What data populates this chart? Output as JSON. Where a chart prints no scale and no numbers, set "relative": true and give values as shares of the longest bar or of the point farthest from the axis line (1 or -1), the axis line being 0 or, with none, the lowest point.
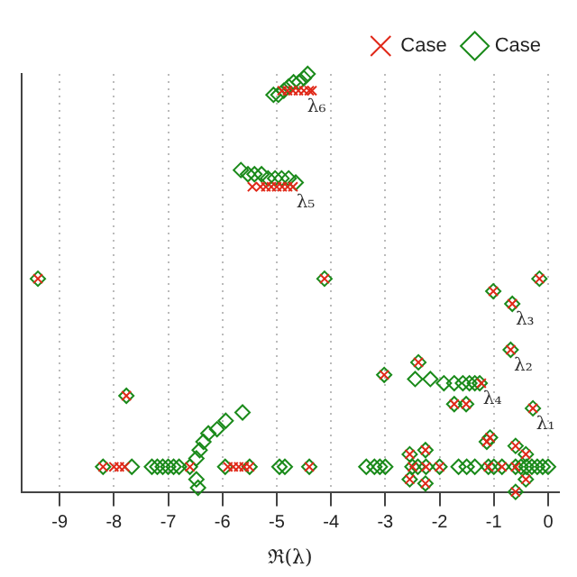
{
  "chart_data": {
    "type": "scatter",
    "xlabel": "ℜ(λ)",
    "relative": true,
    "xlim": [
      -9.7,
      0.2
    ],
    "xticks": [
      -9,
      -8,
      -7,
      -6,
      -5,
      -4,
      -3,
      -2,
      -1,
      0
    ],
    "grid": "x",
    "legend": "top right",
    "series": [
      {
        "name": "Case",
        "color": "#e02818",
        "marker": "cross",
        "x": [
          -4.9,
          -4.8,
          -4.7,
          -4.6,
          -4.5,
          -4.4,
          -4.35,
          -5.45,
          -5.3,
          -5.2,
          -5.1,
          -5.0,
          -4.9,
          -4.8,
          -4.7,
          -9.4,
          -4.12,
          -0.16,
          -1.01,
          -0.66,
          -0.69,
          -3.02,
          -2.39,
          -1.73,
          -1.51,
          -0.28,
          -1.07,
          -1.13,
          -7.77,
          -1.23,
          -8.2,
          -8.0,
          -7.9,
          -7.8,
          -6.6,
          -5.9,
          -5.8,
          -5.7,
          -5.6,
          -5.5,
          -4.4,
          -2.5,
          -2.25,
          -2.0,
          -1.1,
          -0.85,
          -0.6,
          -2.55,
          -2.55,
          -2.26,
          -2.26,
          -0.6,
          -0.6,
          -0.41,
          -0.41
        ],
        "values": [
          0.96,
          0.96,
          0.96,
          0.96,
          0.96,
          0.96,
          0.96,
          0.73,
          0.73,
          0.73,
          0.73,
          0.73,
          0.73,
          0.73,
          0.73,
          0.51,
          0.51,
          0.51,
          0.48,
          0.45,
          0.34,
          0.28,
          0.31,
          0.21,
          0.21,
          0.2,
          0.13,
          0.12,
          0.23,
          0.26,
          0.06,
          0.06,
          0.06,
          0.06,
          0.06,
          0.06,
          0.06,
          0.06,
          0.06,
          0.06,
          0.06,
          0.06,
          0.06,
          0.06,
          0.06,
          0.06,
          0.06,
          0.09,
          0.03,
          0.1,
          0.02,
          0.11,
          0,
          0.09,
          0.03
        ]
      },
      {
        "name": "Case",
        "color": "#1a8a1a",
        "marker": "diamond",
        "x": [
          -5.06,
          -4.97,
          -4.87,
          -4.78,
          -4.69,
          -4.59,
          -4.5,
          -4.43,
          -5.66,
          -5.53,
          -5.41,
          -5.28,
          -5.16,
          -5.03,
          -4.91,
          -4.78,
          -4.65,
          -9.4,
          -4.12,
          -0.16,
          -1.01,
          -0.66,
          -0.69,
          -3.02,
          -2.39,
          -1.73,
          -1.51,
          -0.28,
          -1.07,
          -1.13,
          -7.77,
          -2.45,
          -2.17,
          -1.92,
          -1.73,
          -1.57,
          -1.45,
          -1.35,
          -1.26,
          -5.63,
          -5.94,
          -6.1,
          -6.26,
          -6.35,
          -6.42,
          -6.48,
          -6.48,
          -6.45,
          -8.2,
          -7.67,
          -7.3,
          -7.2,
          -7.1,
          -7.0,
          -6.9,
          -6.8,
          -6.6,
          -5.95,
          -5.5,
          -4.95,
          -4.85,
          -4.4,
          -3.35,
          -3.2,
          -3.1,
          -3.0,
          -2.5,
          -2.4,
          -2.25,
          -2.0,
          -1.65,
          -1.5,
          -1.35,
          -1.1,
          -1.0,
          -0.85,
          -0.6,
          -0.5,
          -0.4,
          -0.3,
          -0.2,
          -0.1,
          0,
          -2.55,
          -2.55,
          -2.26,
          -2.26,
          -0.6,
          -0.6,
          -0.41,
          -0.41
        ],
        "values": [
          0.95,
          0.95,
          0.96,
          0.97,
          0.98,
          0.98,
          0.99,
          1,
          0.77,
          0.76,
          0.76,
          0.76,
          0.75,
          0.75,
          0.75,
          0.75,
          0.74,
          0.51,
          0.51,
          0.51,
          0.48,
          0.45,
          0.34,
          0.28,
          0.31,
          0.21,
          0.21,
          0.2,
          0.13,
          0.12,
          0.23,
          0.27,
          0.27,
          0.26,
          0.26,
          0.26,
          0.26,
          0.26,
          0.26,
          0.19,
          0.17,
          0.15,
          0.14,
          0.12,
          0.1,
          0.08,
          0.03,
          0.01,
          0.06,
          0.06,
          0.06,
          0.06,
          0.06,
          0.06,
          0.06,
          0.06,
          0.06,
          0.06,
          0.06,
          0.06,
          0.06,
          0.06,
          0.06,
          0.06,
          0.06,
          0.06,
          0.06,
          0.06,
          0.06,
          0.06,
          0.06,
          0.06,
          0.06,
          0.06,
          0.06,
          0.06,
          0.06,
          0.06,
          0.06,
          0.06,
          0.06,
          0.06,
          0.06,
          0.09,
          0.03,
          0.1,
          0.02,
          0.11,
          0,
          0.09,
          0.03
        ]
      }
    ],
    "annotations": [
      {
        "text": "λ₆",
        "x": -4.5,
        "y": 0.96
      },
      {
        "text": "λ₅",
        "x": -4.7,
        "y": 0.73
      },
      {
        "text": "λ₄",
        "x": -1.26,
        "y": 0.26
      },
      {
        "text": "λ₃",
        "x": -0.66,
        "y": 0.45
      },
      {
        "text": "λ₂",
        "x": -0.69,
        "y": 0.34
      },
      {
        "text": "λ₁",
        "x": -0.28,
        "y": 0.2
      }
    ]
  }
}
